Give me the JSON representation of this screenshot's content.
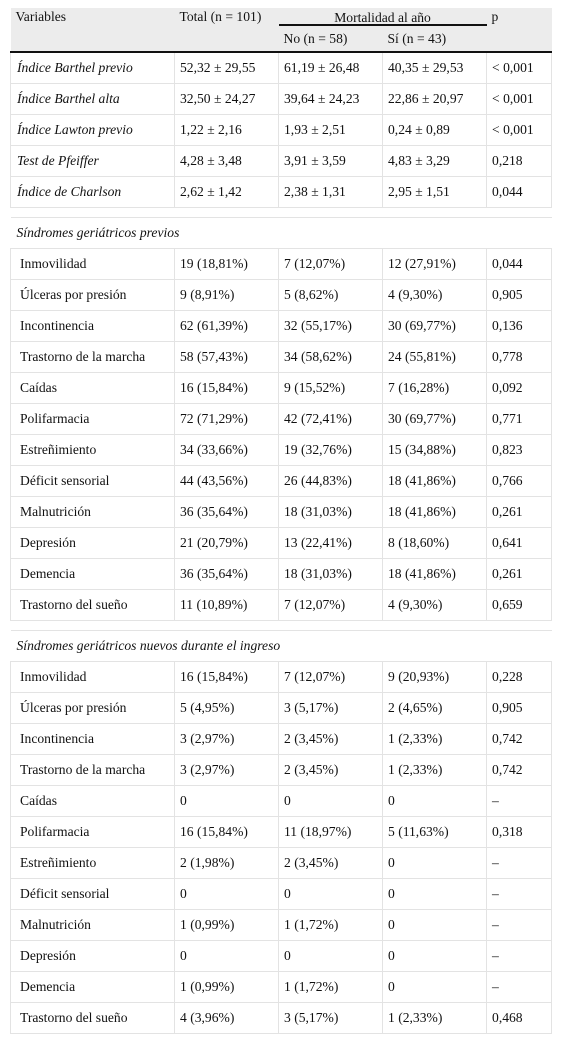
{
  "header": {
    "variables": "Variables",
    "total": "Total (n = 101)",
    "mortalidad": "Mortalidad al año",
    "no": "No (n = 58)",
    "si": "Sí (n = 43)",
    "p": "p"
  },
  "indices": [
    {
      "label": "Índice Barthel previo",
      "total": "52,32 ± 29,55",
      "no": "61,19 ± 26,48",
      "si": "40,35 ± 29,53",
      "p": "< 0,001"
    },
    {
      "label": "Índice Barthel alta",
      "total": "32,50 ± 24,27",
      "no": "39,64 ± 24,23",
      "si": "22,86 ± 20,97",
      "p": "< 0,001"
    },
    {
      "label": "Índice Lawton previo",
      "total": "1,22 ± 2,16",
      "no": "1,93 ± 2,51",
      "si": "0,24 ± 0,89",
      "p": "< 0,001"
    },
    {
      "label": "Test de Pfeiffer",
      "total": "4,28 ± 3,48",
      "no": "3,91 ± 3,59",
      "si": "4,83 ± 3,29",
      "p": "0,218"
    },
    {
      "label": "Índice de Charlson",
      "total": "2,62 ± 1,42",
      "no": "2,38 ± 1,31",
      "si": "2,95 ± 1,51",
      "p": "0,044"
    }
  ],
  "section_previos": "Síndromes geriátricos previos",
  "previos": [
    {
      "label": "Inmovilidad",
      "total": "19 (18,81%)",
      "no": "7 (12,07%)",
      "si": "12 (27,91%)",
      "p": "0,044"
    },
    {
      "label": "Úlceras por presión",
      "total": "9 (8,91%)",
      "no": "5 (8,62%)",
      "si": "4 (9,30%)",
      "p": "0,905"
    },
    {
      "label": "Incontinencia",
      "total": "62 (61,39%)",
      "no": "32 (55,17%)",
      "si": "30 (69,77%)",
      "p": "0,136"
    },
    {
      "label": "Trastorno de la marcha",
      "total": "58 (57,43%)",
      "no": "34 (58,62%)",
      "si": "24 (55,81%)",
      "p": "0,778"
    },
    {
      "label": "Caídas",
      "total": "16 (15,84%)",
      "no": "9 (15,52%)",
      "si": "7 (16,28%)",
      "p": "0,092"
    },
    {
      "label": "Polifarmacia",
      "total": "72 (71,29%)",
      "no": "42 (72,41%)",
      "si": "30 (69,77%)",
      "p": "0,771"
    },
    {
      "label": "Estreñimiento",
      "total": "34 (33,66%)",
      "no": "19 (32,76%)",
      "si": "15 (34,88%)",
      "p": "0,823"
    },
    {
      "label": "Déficit sensorial",
      "total": "44 (43,56%)",
      "no": "26 (44,83%)",
      "si": "18 (41,86%)",
      "p": "0,766"
    },
    {
      "label": "Malnutrición",
      "total": "36 (35,64%)",
      "no": "18 (31,03%)",
      "si": "18 (41,86%)",
      "p": "0,261"
    },
    {
      "label": "Depresión",
      "total": "21 (20,79%)",
      "no": "13 (22,41%)",
      "si": "8 (18,60%)",
      "p": "0,641"
    },
    {
      "label": "Demencia",
      "total": "36 (35,64%)",
      "no": "18 (31,03%)",
      "si": "18 (41,86%)",
      "p": "0,261"
    },
    {
      "label": "Trastorno del sueño",
      "total": "11 (10,89%)",
      "no": "7 (12,07%)",
      "si": "4 (9,30%)",
      "p": "0,659"
    }
  ],
  "section_nuevos": "Síndromes geriátricos nuevos durante el ingreso",
  "nuevos": [
    {
      "label": "Inmovilidad",
      "total": "16 (15,84%)",
      "no": "7 (12,07%)",
      "si": "9 (20,93%)",
      "p": "0,228"
    },
    {
      "label": "Úlceras por presión",
      "total": "5 (4,95%)",
      "no": "3 (5,17%)",
      "si": "2 (4,65%)",
      "p": "0,905"
    },
    {
      "label": "Incontinencia",
      "total": "3 (2,97%)",
      "no": "2 (3,45%)",
      "si": "1 (2,33%)",
      "p": "0,742"
    },
    {
      "label": "Trastorno de la marcha",
      "total": "3 (2,97%)",
      "no": "2 (3,45%)",
      "si": "1 (2,33%)",
      "p": "0,742"
    },
    {
      "label": "Caídas",
      "total": "0",
      "no": "0",
      "si": "0",
      "p": "–"
    },
    {
      "label": "Polifarmacia",
      "total": "16 (15,84%)",
      "no": "11 (18,97%)",
      "si": "5 (11,63%)",
      "p": "0,318"
    },
    {
      "label": "Estreñimiento",
      "total": "2 (1,98%)",
      "no": "2 (3,45%)",
      "si": "0",
      "p": "–"
    },
    {
      "label": "Déficit sensorial",
      "total": "0",
      "no": "0",
      "si": "0",
      "p": "–"
    },
    {
      "label": "Malnutrición",
      "total": "1 (0,99%)",
      "no": "1 (1,72%)",
      "si": "0",
      "p": "–"
    },
    {
      "label": "Depresión",
      "total": "0",
      "no": "0",
      "si": "0",
      "p": "–"
    },
    {
      "label": "Demencia",
      "total": "1 (0,99%)",
      "no": "1 (1,72%)",
      "si": "0",
      "p": "–"
    },
    {
      "label": "Trastorno del sueño",
      "total": "4 (3,96%)",
      "no": "3 (5,17%)",
      "si": "1 (2,33%)",
      "p": "0,468"
    }
  ]
}
